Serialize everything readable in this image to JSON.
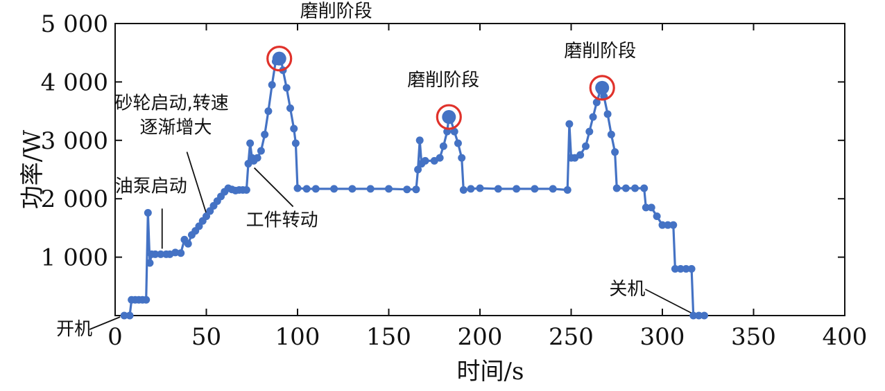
{
  "chart_data": {
    "type": "line",
    "xlabel": "时间/s",
    "ylabel": "功率/W",
    "xlim": [
      0,
      400
    ],
    "ylim": [
      0,
      5000
    ],
    "x_ticks": [
      "0",
      "50",
      "100",
      "150",
      "200",
      "250",
      "300",
      "350",
      "400"
    ],
    "y_ticks": [
      "1 000",
      "2 000",
      "3 000",
      "4 000",
      "5 000"
    ],
    "colors": {
      "series": "#4472c4",
      "peak_marker": "#e0322b"
    },
    "series": [
      {
        "points": [
          [
            5,
            0
          ],
          [
            8,
            0
          ],
          [
            9,
            270
          ],
          [
            11,
            270
          ],
          [
            13,
            270
          ],
          [
            15,
            270
          ],
          [
            17,
            270
          ],
          [
            18,
            1760
          ],
          [
            19,
            900
          ],
          [
            20,
            1050
          ],
          [
            22,
            1050
          ],
          [
            25,
            1050
          ],
          [
            28,
            1050
          ],
          [
            30,
            1050
          ],
          [
            33,
            1080
          ],
          [
            36,
            1070
          ],
          [
            38,
            1300
          ],
          [
            40,
            1230
          ],
          [
            42,
            1380
          ],
          [
            44,
            1450
          ],
          [
            46,
            1530
          ],
          [
            48,
            1620
          ],
          [
            50,
            1700
          ],
          [
            52,
            1790
          ],
          [
            54,
            1880
          ],
          [
            56,
            1960
          ],
          [
            58,
            2040
          ],
          [
            60,
            2120
          ],
          [
            62,
            2180
          ],
          [
            64,
            2160
          ],
          [
            66,
            2140
          ],
          [
            68,
            2150
          ],
          [
            70,
            2150
          ],
          [
            72,
            2150
          ],
          [
            73,
            2600
          ],
          [
            74,
            2950
          ],
          [
            75,
            2700
          ],
          [
            76,
            2650
          ],
          [
            78,
            2700
          ],
          [
            80,
            2820
          ],
          [
            82,
            3100
          ],
          [
            84,
            3500
          ],
          [
            86,
            3950
          ],
          [
            88,
            4350
          ],
          [
            90,
            4400
          ],
          [
            91,
            4380
          ],
          [
            92,
            4200
          ],
          [
            94,
            3900
          ],
          [
            96,
            3550
          ],
          [
            98,
            3200
          ],
          [
            99,
            2950
          ],
          [
            100,
            2180
          ],
          [
            105,
            2170
          ],
          [
            110,
            2170
          ],
          [
            120,
            2170
          ],
          [
            130,
            2170
          ],
          [
            140,
            2170
          ],
          [
            150,
            2170
          ],
          [
            160,
            2160
          ],
          [
            165,
            2160
          ],
          [
            166,
            2500
          ],
          [
            167,
            3000
          ],
          [
            168,
            2600
          ],
          [
            170,
            2650
          ],
          [
            175,
            2650
          ],
          [
            178,
            2700
          ],
          [
            180,
            2900
          ],
          [
            182,
            3150
          ],
          [
            183,
            3400
          ],
          [
            184,
            3350
          ],
          [
            186,
            3150
          ],
          [
            188,
            2950
          ],
          [
            190,
            2700
          ],
          [
            191,
            2150
          ],
          [
            195,
            2170
          ],
          [
            200,
            2180
          ],
          [
            210,
            2170
          ],
          [
            220,
            2170
          ],
          [
            230,
            2170
          ],
          [
            240,
            2170
          ],
          [
            248,
            2150
          ],
          [
            249,
            3280
          ],
          [
            250,
            2700
          ],
          [
            252,
            2700
          ],
          [
            255,
            2750
          ],
          [
            258,
            2900
          ],
          [
            260,
            3150
          ],
          [
            262,
            3400
          ],
          [
            264,
            3650
          ],
          [
            266,
            3850
          ],
          [
            267,
            3900
          ],
          [
            268,
            3750
          ],
          [
            270,
            3450
          ],
          [
            272,
            3100
          ],
          [
            274,
            2800
          ],
          [
            275,
            2180
          ],
          [
            280,
            2180
          ],
          [
            285,
            2180
          ],
          [
            290,
            2180
          ],
          [
            291,
            1850
          ],
          [
            294,
            1850
          ],
          [
            297,
            1700
          ],
          [
            300,
            1550
          ],
          [
            303,
            1550
          ],
          [
            306,
            1550
          ],
          [
            307,
            800
          ],
          [
            310,
            800
          ],
          [
            313,
            800
          ],
          [
            316,
            800
          ],
          [
            317,
            0
          ],
          [
            320,
            0
          ],
          [
            323,
            0
          ]
        ]
      }
    ],
    "annotations": [
      {
        "text": "开机",
        "x": 5,
        "y": 0
      },
      {
        "text": "油泵启动",
        "x": 25,
        "y": 1050
      },
      {
        "text": "砂轮启动,转速",
        "x": 50,
        "y": 1700
      },
      {
        "text": "逐渐增大",
        "x": 50,
        "y": 1700
      },
      {
        "text": "工件转动",
        "x": 74,
        "y": 2600
      },
      {
        "text": "磨削阶段",
        "x": 90,
        "y": 4400
      },
      {
        "text": "磨削阶段",
        "x": 183,
        "y": 3400
      },
      {
        "text": "磨削阶段",
        "x": 267,
        "y": 3900
      },
      {
        "text": "关机",
        "x": 318,
        "y": 0
      }
    ],
    "peaks": [
      [
        90,
        4400
      ],
      [
        183,
        3400
      ],
      [
        267,
        3900
      ]
    ],
    "grid": false,
    "legend": "none"
  }
}
